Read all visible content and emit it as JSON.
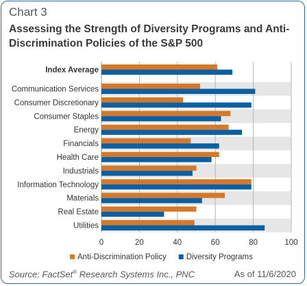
{
  "header": {
    "chart_label": "Chart 3",
    "title": "Assessing the Strength of Diversity Programs and Anti-Discrimination Policies of the S&P 500"
  },
  "footer": {
    "source_prefix": "Source: FactSet",
    "source_mark": "®",
    "source_suffix": " Research Systems Inc., PNC",
    "as_of": "As of 11/6/2020"
  },
  "chart_data": {
    "type": "bar",
    "orientation": "horizontal",
    "categories": [
      "Index Average",
      "Communication Services",
      "Consumer Discretionary",
      "Consumer Staples",
      "Energy",
      "Financials",
      "Health Care",
      "Industrials",
      "Information Technology",
      "Materials",
      "Real Estate",
      "Utilities"
    ],
    "emphasized_category": "Index Average",
    "series": [
      {
        "name": "Anti-Discrimination Policy",
        "color": "#d4782a",
        "values": [
          61,
          52,
          43,
          68,
          67,
          47,
          62,
          50,
          79,
          65,
          50,
          49
        ]
      },
      {
        "name": "Diversity Programs",
        "color": "#0b5fa3",
        "values": [
          69,
          81,
          79,
          63,
          74,
          62,
          58,
          48,
          79,
          53,
          33,
          86
        ]
      }
    ],
    "xlim": [
      0,
      100
    ],
    "xticks": [
      0,
      20,
      40,
      60,
      80,
      100
    ],
    "grid": true,
    "band_color": "#e6e6e6",
    "legend_position": "bottom"
  }
}
